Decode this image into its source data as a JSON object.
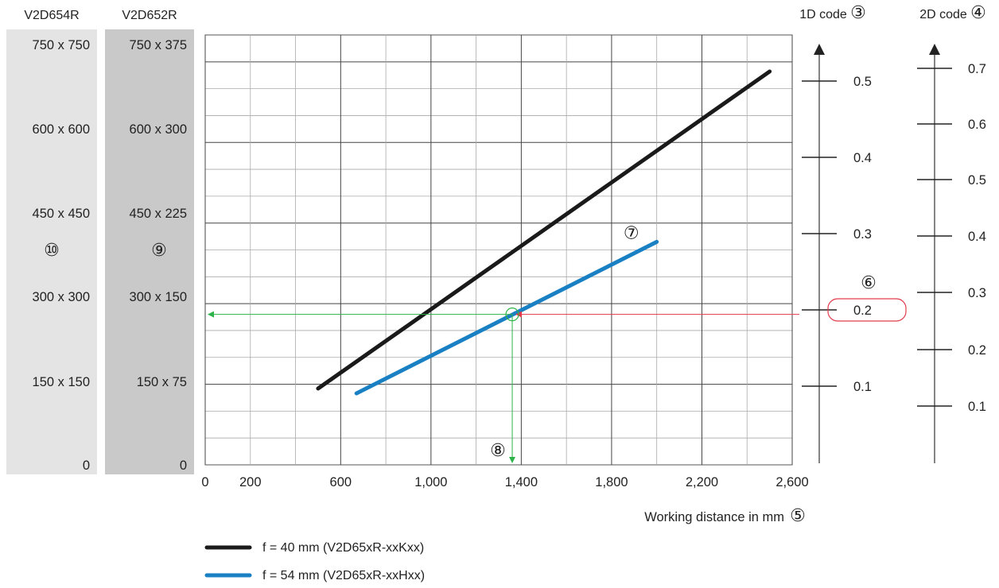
{
  "fov_columns": [
    {
      "name": "V2D654R",
      "marker": "⑩",
      "labels": [
        "750 x 750",
        "600 x 600",
        "450 x 450",
        "300 x 300",
        "150 x 150",
        "0"
      ],
      "bg": "#e4e4e4"
    },
    {
      "name": "V2D652R",
      "marker": "⑨",
      "labels": [
        "750 x 375",
        "600 x 300",
        "450 x 225",
        "300 x 150",
        "150 x 75",
        "0"
      ],
      "bg": "#c9c9c9"
    }
  ],
  "chart_data": {
    "type": "line",
    "xlabel": "Working distance in mm",
    "xlabel_marker": "⑤",
    "xlim": [
      0,
      2600
    ],
    "ylim": [
      0,
      800
    ],
    "x_ticks": [
      0,
      200,
      600,
      1000,
      1400,
      1800,
      2200,
      2600
    ],
    "x_tick_labels": [
      "0",
      "200",
      "600",
      "1,000",
      "1,400",
      "1,800",
      "2,200",
      "2,600"
    ],
    "x_grid": [
      0,
      200,
      400,
      600,
      800,
      1000,
      1200,
      1400,
      1600,
      1800,
      2000,
      2200,
      2400,
      2600
    ],
    "y_grid_major": [
      0,
      150,
      300,
      450,
      600,
      750
    ],
    "grid": true,
    "series": [
      {
        "name": "f = 40 mm (V2D65xR-xxKxx)",
        "color": "#1a1a1a",
        "points": [
          [
            500,
            142
          ],
          [
            2500,
            732
          ]
        ]
      },
      {
        "name": "f = 54 mm (V2D65xR-xxHxx)",
        "color": "#1a80c4",
        "points": [
          [
            670,
            133
          ],
          [
            2000,
            415
          ]
        ],
        "marker": "⑦"
      }
    ],
    "example": {
      "x": 1360,
      "y": 280,
      "x_marker": "⑧",
      "y_marker": "⑥",
      "green": "#2eb34a",
      "red": "#e23a4a"
    },
    "scale_1d": {
      "title": "1D code",
      "marker": "③",
      "ticks": [
        "0.5",
        "0.4",
        "0.3",
        "0.2",
        "0.1"
      ],
      "highlight": "0.2"
    },
    "scale_2d": {
      "title": "2D code",
      "marker": "④",
      "ticks": [
        "0.7",
        "0.6",
        "0.5",
        "0.4",
        "0.3",
        "0.2",
        "0.1"
      ]
    },
    "legend_position": "bottom-center"
  }
}
